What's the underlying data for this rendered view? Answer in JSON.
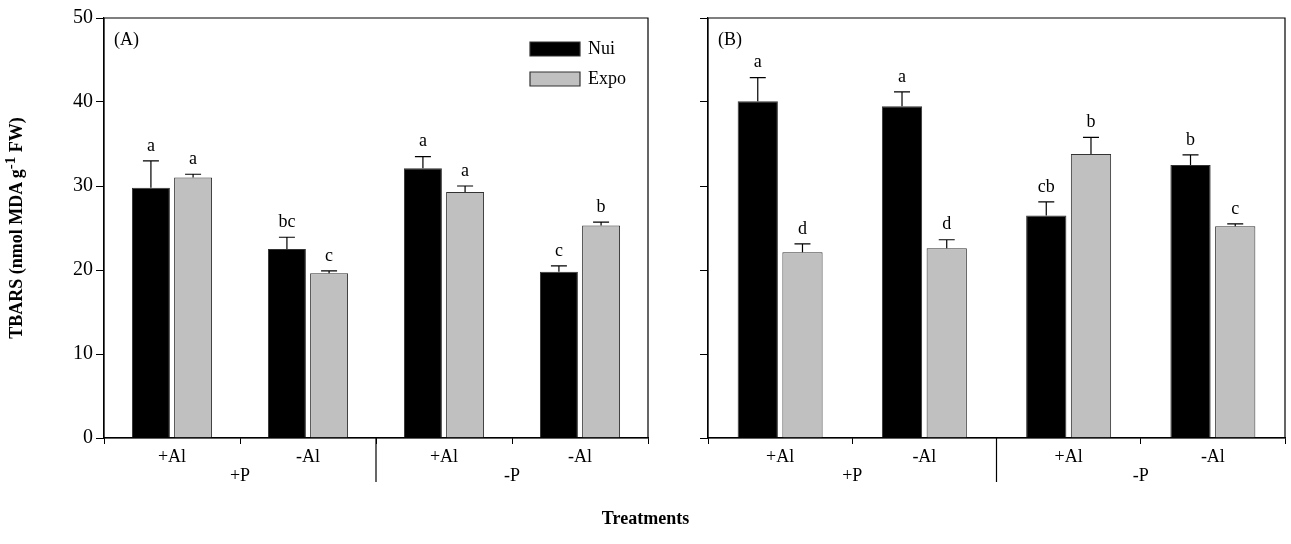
{
  "chart_data": [
    {
      "type": "bar",
      "title": "(A)",
      "xlabel": "Treatments",
      "ylabel": "TBARS (nmol MDA g$^{-1}$ FW)",
      "categories": [
        "+Al",
        "-Al",
        "+Al",
        "-Al"
      ],
      "annotations": [
        "+P",
        "-P"
      ],
      "ylim": [
        0,
        50
      ],
      "yticks": [
        0,
        10,
        20,
        30,
        40,
        50
      ],
      "grid": false,
      "legend": "top right",
      "series": [
        {
          "name": "Nui",
          "color": "#000000",
          "values": [
            29.8,
            22.5,
            32.1,
            19.8
          ],
          "errors": [
            [
              29.8,
              33.0
            ],
            [
              22.5,
              23.9
            ],
            [
              32.1,
              33.5
            ],
            [
              19.8,
              20.5
            ]
          ],
          "value_labels": [
            "a",
            "bc",
            "a",
            "c"
          ]
        },
        {
          "name": "Expo",
          "color": "#c0c0c0",
          "values": [
            31.0,
            19.6,
            29.3,
            25.3
          ],
          "errors": [
            [
              31.0,
              31.4
            ],
            [
              19.6,
              19.9
            ],
            [
              29.3,
              30.0
            ],
            [
              25.3,
              25.7
            ]
          ],
          "value_labels": [
            "a",
            "c",
            "a",
            "b"
          ]
        }
      ]
    },
    {
      "type": "bar",
      "title": "(B)",
      "categories": [
        "+Al",
        "-Al",
        "+Al",
        "-Al"
      ],
      "annotations": [
        "+P",
        "-P"
      ],
      "ylim": [
        0,
        50
      ],
      "yticks": [
        0,
        10,
        20,
        30,
        40,
        50
      ],
      "tick_labels": "x",
      "grid": false,
      "series": [
        {
          "color": "#000000",
          "values": [
            40.1,
            39.5,
            26.5,
            32.5
          ],
          "errors": [
            [
              40.1,
              42.9
            ],
            [
              39.5,
              41.2
            ],
            [
              26.5,
              28.1
            ],
            [
              32.5,
              33.7
            ]
          ],
          "value_labels": [
            "a",
            "a",
            "cb",
            "b"
          ]
        },
        {
          "color": "#c0c0c0",
          "values": [
            22.1,
            22.6,
            33.8,
            25.2
          ],
          "errors": [
            [
              22.1,
              23.1
            ],
            [
              22.6,
              23.6
            ],
            [
              33.8,
              35.8
            ],
            [
              25.2,
              25.5
            ]
          ],
          "value_labels": [
            "d",
            "d",
            "b",
            "c"
          ]
        }
      ]
    }
  ]
}
